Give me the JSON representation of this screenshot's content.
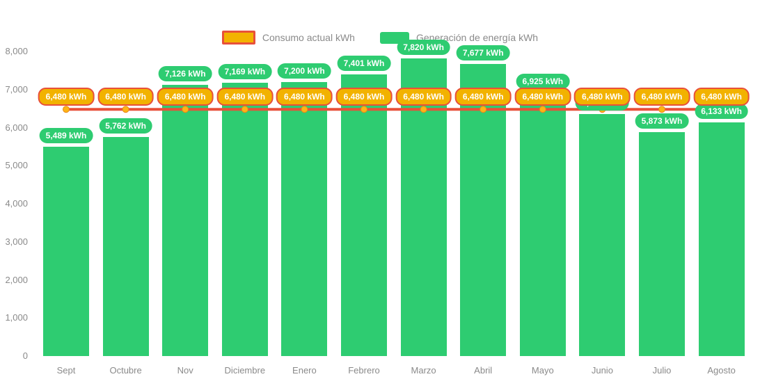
{
  "legend": {
    "consumption_label": "Consumo actual kWh",
    "generation_label": "Generación de energía kWh"
  },
  "colors": {
    "bar_green": "#2ecc71",
    "pill_orange": "#f2b200",
    "line_red": "#e8503a",
    "marker_gold": "#fdb515",
    "axis_text": "#8a8a8a",
    "label_text": "#ffffff"
  },
  "chart_data": {
    "type": "bar",
    "title": "",
    "xlabel": "",
    "ylabel": "",
    "categories": [
      "Sept",
      "Octubre",
      "Nov",
      "Diciembre",
      "Enero",
      "Febrero",
      "Marzo",
      "Abril",
      "Mayo",
      "Junio",
      "Julio",
      "Agosto"
    ],
    "series": [
      {
        "name": "Generación de energía kWh",
        "type": "bar",
        "values": [
          5489,
          5762,
          7126,
          7169,
          7200,
          7401,
          7820,
          7677,
          6925,
          6357,
          5873,
          6133
        ],
        "labels": [
          "5,489 kWh",
          "5,762 kWh",
          "7,126 kWh",
          "7,169 kWh",
          "7,200 kWh",
          "7,401 kWh",
          "7,820 kWh",
          "7,677 kWh",
          "6,925 kWh",
          "6,357 kWh",
          "5,873 kWh",
          "6,133 kWh"
        ],
        "color": "#2ecc71"
      },
      {
        "name": "Consumo actual kWh",
        "type": "line",
        "values": [
          6480,
          6480,
          6480,
          6480,
          6480,
          6480,
          6480,
          6480,
          6480,
          6480,
          6480,
          6480
        ],
        "labels": [
          "6,480 kWh",
          "6,480 kWh",
          "6,480 kWh",
          "6,480 kWh",
          "6,480 kWh",
          "6,480 kWh",
          "6,480 kWh",
          "6,480 kWh",
          "6,480 kWh",
          "6,480 kWh",
          "6,480 kWh",
          "6,480 kWh"
        ],
        "color": "#e8503a"
      }
    ],
    "ylim": [
      0,
      8000
    ],
    "ytick_labels": [
      "0",
      "1,000",
      "2,000",
      "3,000",
      "4,000",
      "5,000",
      "6,000",
      "7,000",
      "8,000"
    ],
    "grid": false,
    "legend_position": "top"
  }
}
